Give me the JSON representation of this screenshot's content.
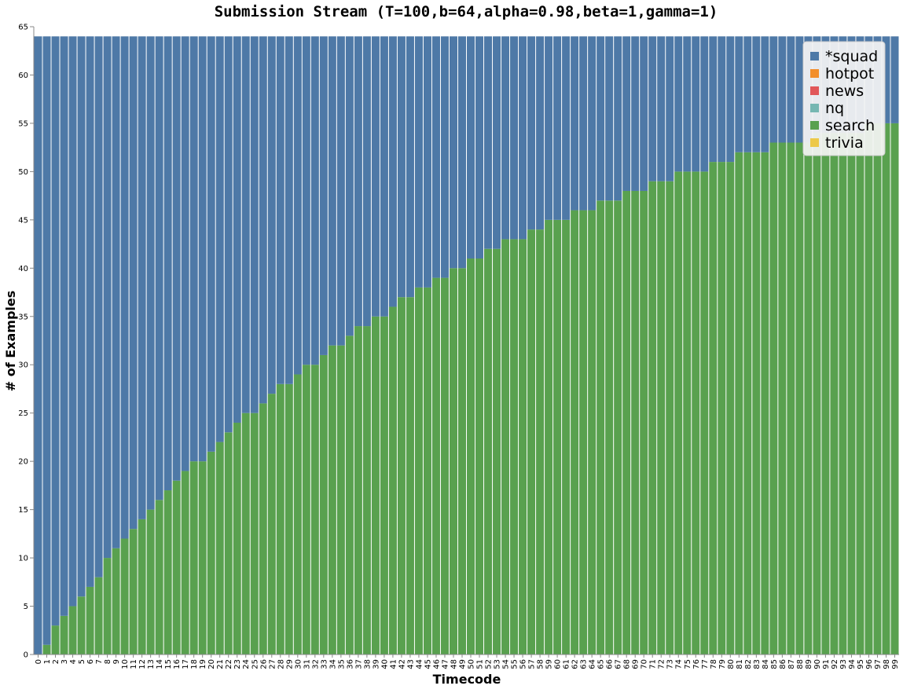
{
  "chart_data": {
    "type": "bar",
    "stacked": true,
    "title": "Submission Stream (T=100,b=64,alpha=0.98,beta=1,gamma=1)",
    "xlabel": "Timecode",
    "ylabel": "# of Examples",
    "ylim": [
      0,
      65
    ],
    "yticks": [
      0,
      5,
      10,
      15,
      20,
      25,
      30,
      35,
      40,
      45,
      50,
      55,
      60,
      65
    ],
    "grid": false,
    "legend_position": "top-right",
    "categories": [
      "0",
      "1",
      "2",
      "3",
      "4",
      "5",
      "6",
      "7",
      "8",
      "9",
      "10",
      "11",
      "12",
      "13",
      "14",
      "15",
      "16",
      "17",
      "18",
      "19",
      "20",
      "21",
      "22",
      "23",
      "24",
      "25",
      "26",
      "27",
      "28",
      "29",
      "30",
      "31",
      "32",
      "33",
      "34",
      "35",
      "36",
      "37",
      "38",
      "39",
      "40",
      "41",
      "42",
      "43",
      "44",
      "45",
      "46",
      "47",
      "48",
      "49",
      "50",
      "51",
      "52",
      "53",
      "54",
      "55",
      "56",
      "57",
      "58",
      "59",
      "60",
      "61",
      "62",
      "63",
      "64",
      "65",
      "66",
      "67",
      "68",
      "69",
      "70",
      "71",
      "72",
      "73",
      "74",
      "75",
      "76",
      "77",
      "78",
      "79",
      "80",
      "81",
      "82",
      "83",
      "84",
      "85",
      "86",
      "87",
      "88",
      "89",
      "90",
      "91",
      "92",
      "93",
      "94",
      "95",
      "96",
      "97",
      "98",
      "99"
    ],
    "series": [
      {
        "name": "search",
        "color": "#59a14f",
        "values": [
          0,
          1,
          3,
          4,
          5,
          6,
          7,
          8,
          10,
          11,
          12,
          13,
          14,
          15,
          16,
          17,
          18,
          19,
          20,
          20,
          21,
          22,
          23,
          24,
          25,
          25,
          26,
          27,
          28,
          28,
          29,
          30,
          30,
          31,
          32,
          32,
          33,
          34,
          34,
          35,
          35,
          36,
          37,
          37,
          38,
          38,
          39,
          39,
          40,
          40,
          41,
          41,
          42,
          42,
          43,
          43,
          43,
          44,
          44,
          45,
          45,
          45,
          46,
          46,
          46,
          47,
          47,
          47,
          48,
          48,
          48,
          49,
          49,
          49,
          50,
          50,
          50,
          50,
          51,
          51,
          51,
          52,
          52,
          52,
          52,
          53,
          53,
          53,
          53,
          53,
          54,
          54,
          54,
          54,
          54,
          54,
          55,
          55,
          55,
          55
        ]
      },
      {
        "name": "*squad",
        "color": "#4e79a7",
        "values": [
          64,
          63,
          61,
          60,
          59,
          58,
          57,
          56,
          54,
          53,
          52,
          51,
          50,
          49,
          48,
          47,
          46,
          45,
          44,
          44,
          43,
          42,
          41,
          40,
          39,
          39,
          38,
          37,
          36,
          36,
          35,
          34,
          34,
          33,
          32,
          32,
          31,
          30,
          30,
          29,
          29,
          28,
          27,
          27,
          26,
          26,
          25,
          25,
          24,
          24,
          23,
          23,
          22,
          22,
          21,
          21,
          21,
          20,
          20,
          19,
          19,
          19,
          18,
          18,
          18,
          17,
          17,
          17,
          16,
          16,
          16,
          15,
          15,
          15,
          14,
          14,
          14,
          14,
          13,
          13,
          13,
          12,
          12,
          12,
          12,
          11,
          11,
          11,
          11,
          11,
          10,
          10,
          10,
          10,
          10,
          10,
          9,
          9,
          9,
          9
        ]
      }
    ],
    "legend": [
      {
        "name": "*squad",
        "color": "#4e79a7"
      },
      {
        "name": "hotpot",
        "color": "#f28e2b"
      },
      {
        "name": "news",
        "color": "#e15759"
      },
      {
        "name": "nq",
        "color": "#76b7b2"
      },
      {
        "name": "search",
        "color": "#59a14f"
      },
      {
        "name": "trivia",
        "color": "#edc948"
      }
    ]
  }
}
